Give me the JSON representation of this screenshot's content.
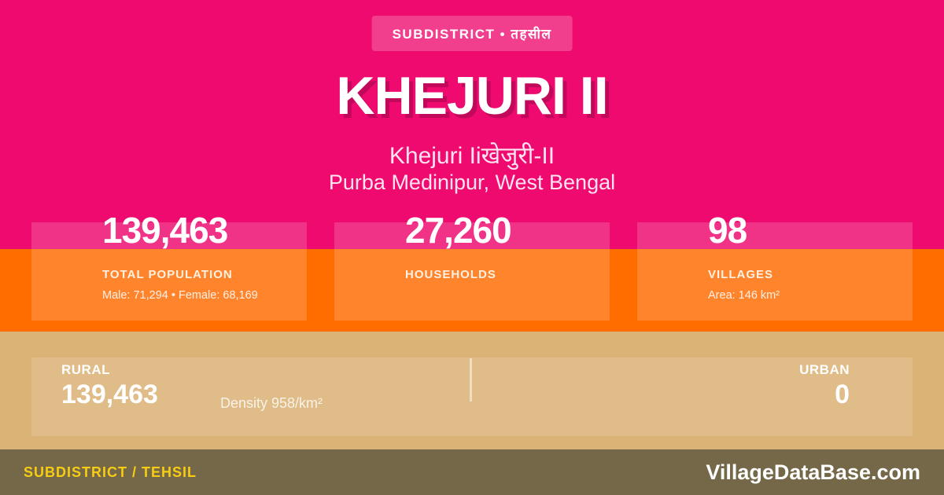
{
  "colors": {
    "pink": "#ee0a6f",
    "title_shadow": "#c2085a",
    "orange": "#ff6c00",
    "tan": "#dbb377",
    "footer_bg": "#756848",
    "yellow": "#f7cd13",
    "light_text": "#ffe2ef"
  },
  "badge": {
    "label": "SUBDISTRICT • तहसील"
  },
  "header": {
    "title": "KHEJURI II",
    "subtitle": "Khejuri Iiखेजुरी-II",
    "location": "Purba Medinipur, West Bengal"
  },
  "stats": [
    {
      "value": "139,463",
      "label": "TOTAL POPULATION",
      "detail": "Male: 71,294 • Female: 68,169"
    },
    {
      "value": "27,260",
      "label": "HOUSEHOLDS",
      "detail": ""
    },
    {
      "value": "98",
      "label": "VILLAGES",
      "detail": "Area: 146 km²"
    }
  ],
  "breakdown": {
    "rural_label": "RURAL",
    "rural_value": "139,463",
    "density": "Density 958/km²",
    "urban_label": "URBAN",
    "urban_value": "0"
  },
  "footer": {
    "left": "SUBDISTRICT / TEHSIL",
    "right": "VillageDataBase.com"
  }
}
